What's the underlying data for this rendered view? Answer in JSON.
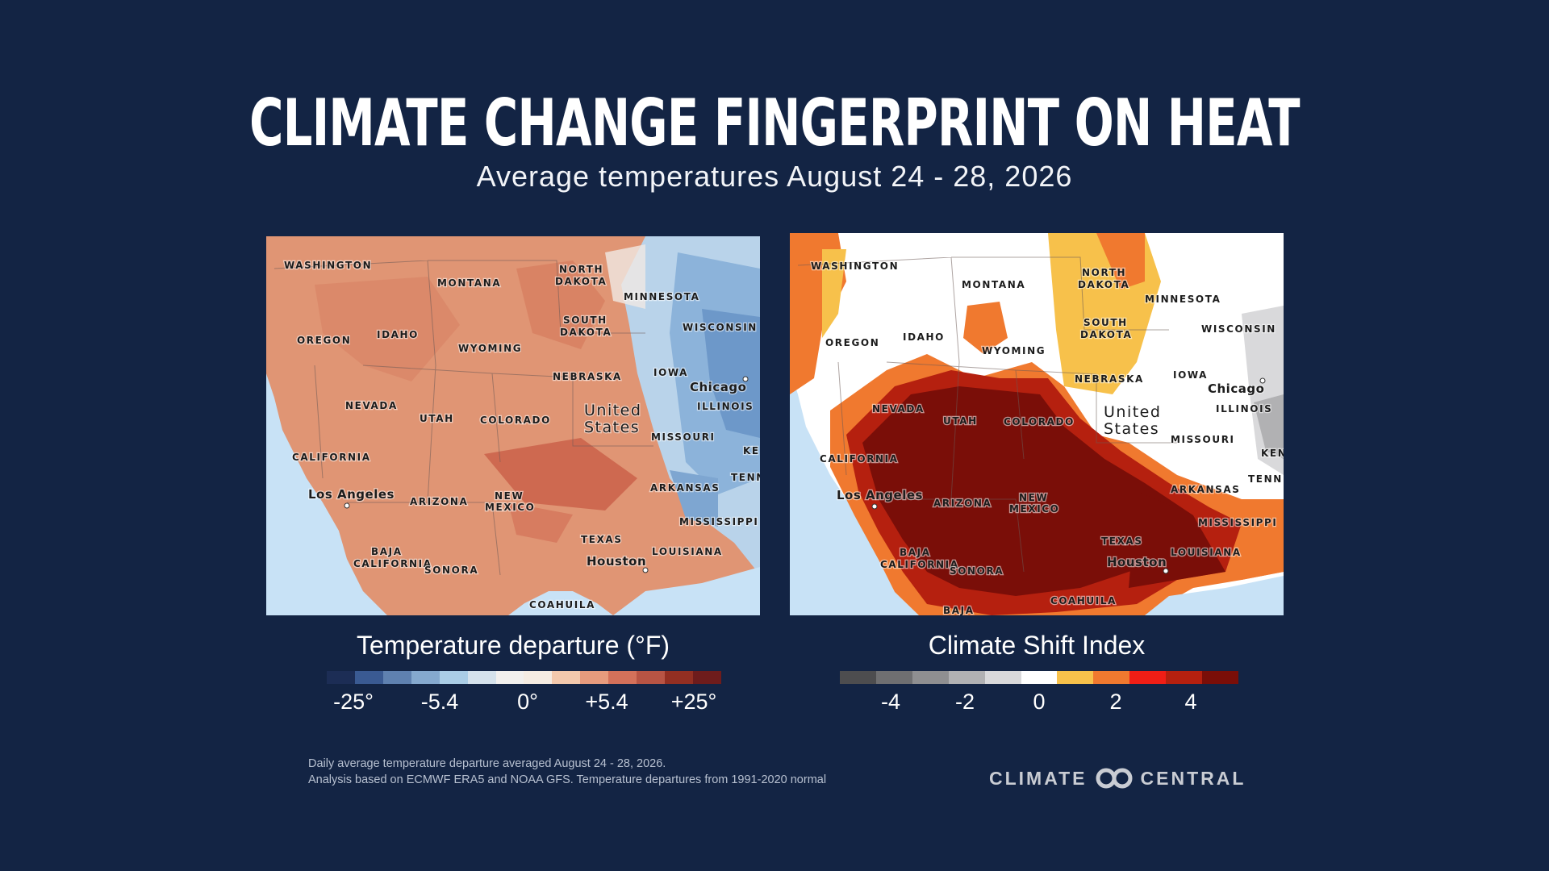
{
  "header": {
    "title": "CLIMATE CHANGE FINGERPRINT ON HEAT",
    "subtitle": "Average temperatures August 24 - 28, 2026"
  },
  "maps": {
    "left": {
      "labels": {
        "washington": "WASHINGTON",
        "montana": "MONTANA",
        "north_dakota_1": "NORTH",
        "north_dakota_2": "DAKOTA",
        "minnesota": "MINNESOTA",
        "wisconsin": "WISCONSIN",
        "south_dakota_1": "SOUTH",
        "south_dakota_2": "DAKOTA",
        "oregon": "OREGON",
        "idaho": "IDAHO",
        "wyoming": "WYOMING",
        "nebraska": "NEBRASKA",
        "iowa": "IOWA",
        "chicago": "Chicago",
        "illinois": "ILLINOIS",
        "nevada": "NEVADA",
        "utah": "UTAH",
        "colorado": "COLORADO",
        "united": "United",
        "states": "States",
        "missouri": "MISSOURI",
        "ke": "KE",
        "california": "CALIFORNIA",
        "tenn": "TENN",
        "los_angeles": "Los Angeles",
        "arizona": "ARIZONA",
        "new": "NEW",
        "mexico": "MEXICO",
        "arkansas": "ARKANSAS",
        "mississippi": "MISSISSIPPI",
        "texas": "TEXAS",
        "baja": "BAJA",
        "baja_california": "CALIFORNIA",
        "louisiana": "LOUISIANA",
        "sonora": "SONORA",
        "houston": "Houston",
        "coahuila": "COAHUILA"
      }
    },
    "right": {
      "labels": {
        "washington": "WASHINGTON",
        "montana": "MONTANA",
        "north_dakota_1": "NORTH",
        "north_dakota_2": "DAKOTA",
        "minnesota": "MINNESOTA",
        "wisconsin": "WISCONSIN",
        "south_dakota_1": "SOUTH",
        "south_dakota_2": "DAKOTA",
        "oregon": "OREGON",
        "idaho": "IDAHO",
        "wyoming": "WYOMING",
        "nebraska": "NEBRASKA",
        "iowa": "IOWA",
        "chicago": "Chicago",
        "illinois": "ILLINOIS",
        "nevada": "NEVADA",
        "utah": "UTAH",
        "colorado": "COLORADO",
        "united": "United",
        "states": "States",
        "missouri": "MISSOURI",
        "ken": "KEN",
        "california": "CALIFORNIA",
        "tenn": "TENN",
        "los_angeles": "Los Angeles",
        "arizona": "ARIZONA",
        "new": "NEW",
        "mexico": "MEXICO",
        "arkansas": "ARKANSAS",
        "mississippi": "MISSISSIPPI",
        "texas": "TEXAS",
        "baja": "BAJA",
        "baja_california": "CALIFORNIA",
        "louisiana": "LOUISIANA",
        "sonora": "SONORA",
        "houston": "Houston",
        "coahuila": "COAHUILA",
        "baja_bottom": "BAJA"
      }
    }
  },
  "legends": {
    "temperature": {
      "title": "Temperature departure (°F)",
      "colors": [
        "#1c2d55",
        "#3a5a92",
        "#5f81b0",
        "#85a9cf",
        "#aacde6",
        "#d5e2ec",
        "#f2f0ee",
        "#f5ece3",
        "#f3c9ad",
        "#e79b7d",
        "#d4715a",
        "#b85444",
        "#932f22",
        "#6e1c1c"
      ],
      "ticks": [
        "-25°",
        "-5.4",
        "0°",
        "+5.4",
        "+25°"
      ]
    },
    "csi": {
      "title": "Climate Shift Index",
      "colors": [
        "#4d4d4f",
        "#6f6f71",
        "#8f8f91",
        "#b1b1b3",
        "#d9d9db",
        "#ffffff",
        "#f7c14b",
        "#f0792f",
        "#f01e16",
        "#b5200f",
        "#7a0e08"
      ],
      "ticks": [
        "-4",
        "-2",
        "0",
        "2",
        "4"
      ]
    }
  },
  "footer": {
    "note_line1": "Daily average temperature departure averaged August 24 - 28, 2026.",
    "note_line2": "Analysis based on ECMWF ERA5 and NOAA GFS. Temperature departures from 1991-2020 normal",
    "logo_left": "CLIMATE",
    "logo_right": "CENTRAL"
  }
}
